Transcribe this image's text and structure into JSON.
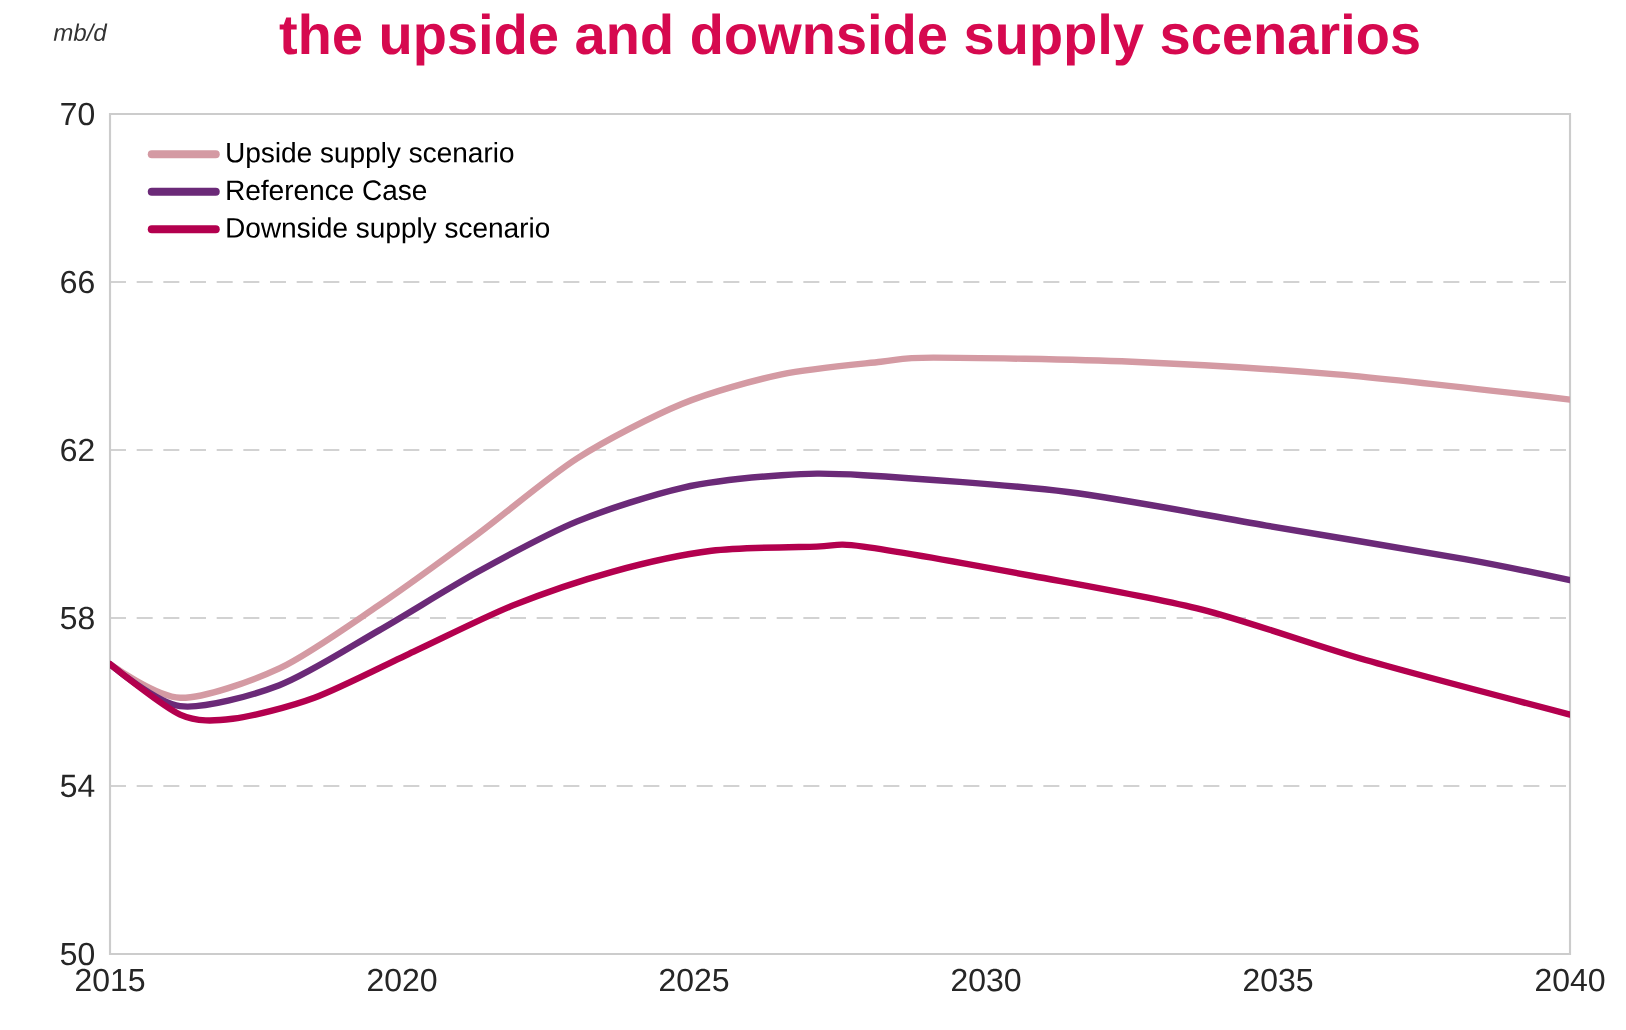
{
  "chart_data": {
    "type": "line",
    "title": "the upside and downside supply scenarios",
    "ylabel": "mb/d",
    "xlim": [
      2015,
      2040
    ],
    "xticks": [
      2015,
      2020,
      2025,
      2030,
      2035,
      2040
    ],
    "ylim": [
      50,
      70
    ],
    "yticks": [
      50,
      54,
      58,
      62,
      66,
      70
    ],
    "grid": "y",
    "legend": "top left",
    "series": [
      {
        "name": "Upside supply scenario",
        "color": "#d49aa3",
        "x": [
          2015,
          2016.2,
          2017.9,
          2019.6,
          2021.3,
          2023.0,
          2024.8,
          2026.5,
          2028.2,
          2029.1,
          2032.5,
          2036.0,
          2040
        ],
        "values": [
          56.9,
          56.1,
          56.8,
          58.3,
          60.0,
          61.8,
          63.1,
          63.8,
          64.1,
          64.2,
          64.1,
          63.8,
          63.2
        ]
      },
      {
        "name": "Reference Case",
        "color": "#6b2a78",
        "x": [
          2015,
          2016.2,
          2017.9,
          2019.6,
          2021.3,
          2023.0,
          2024.8,
          2026.5,
          2027.9,
          2031.4,
          2034.8,
          2038.2,
          2040
        ],
        "values": [
          56.9,
          55.9,
          56.4,
          57.7,
          59.1,
          60.3,
          61.1,
          61.4,
          61.4,
          61.0,
          60.2,
          59.4,
          58.9
        ]
      },
      {
        "name": "Downside supply scenario",
        "color": "#b3004e",
        "x": [
          2015,
          2016.2,
          2017.1,
          2018.5,
          2020.2,
          2021.9,
          2023.6,
          2025.3,
          2027.1,
          2027.9,
          2030.8,
          2033.7,
          2036.5,
          2040
        ],
        "values": [
          56.9,
          55.7,
          55.6,
          56.1,
          57.2,
          58.3,
          59.1,
          59.6,
          59.7,
          59.7,
          59.0,
          58.2,
          57.0,
          55.7
        ]
      }
    ]
  }
}
